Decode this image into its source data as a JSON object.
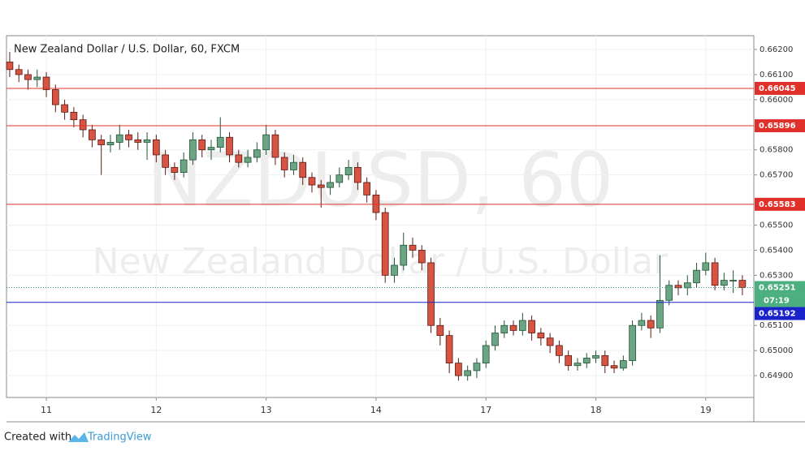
{
  "chart_data": {
    "type": "candlestick",
    "title": "New Zealand Dollar / U.S. Dollar, 60, FXCM",
    "watermark": [
      "NZDUSD, 60",
      "New Zealand Dollar / U.S. Dollar"
    ],
    "up_color": "#6ba583",
    "down_color": "#d75442",
    "x": [
      -8,
      -6,
      -4,
      -2,
      0,
      2,
      4,
      6,
      8,
      10,
      12,
      14,
      16,
      18,
      20,
      22,
      24,
      26,
      28,
      30,
      32,
      34,
      36,
      38,
      40,
      42,
      44,
      46,
      48,
      50,
      52,
      54,
      56,
      58,
      60,
      62,
      64,
      66,
      68,
      70,
      72,
      74,
      76,
      78,
      80,
      82,
      84,
      86,
      88,
      90,
      92,
      94,
      96,
      98,
      100,
      102,
      104,
      106,
      108,
      110,
      112,
      114,
      116,
      118,
      120,
      122,
      124,
      126,
      128,
      130,
      132,
      134,
      136,
      138,
      140,
      142,
      144,
      146,
      148,
      150,
      152
    ],
    "open": [
      0.6615,
      0.6612,
      0.661,
      0.6608,
      0.6609,
      0.6604,
      0.6598,
      0.6595,
      0.6592,
      0.6588,
      0.6584,
      0.6582,
      0.6583,
      0.6586,
      0.6584,
      0.6583,
      0.6584,
      0.6578,
      0.6573,
      0.6571,
      0.6576,
      0.6584,
      0.658,
      0.6581,
      0.6585,
      0.6578,
      0.6575,
      0.6577,
      0.658,
      0.6586,
      0.6577,
      0.6572,
      0.6575,
      0.6569,
      0.6566,
      0.6565,
      0.6567,
      0.657,
      0.6573,
      0.6567,
      0.6562,
      0.6555,
      0.653,
      0.6534,
      0.6542,
      0.654,
      0.6535,
      0.651,
      0.6506,
      0.6495,
      0.649,
      0.6492,
      0.6495,
      0.6502,
      0.6507,
      0.651,
      0.6508,
      0.6512,
      0.6507,
      0.6505,
      0.6502,
      0.6498,
      0.6494,
      0.6495,
      0.6497,
      0.6498,
      0.6494,
      0.6493,
      0.6496,
      0.651,
      0.6512,
      0.6509,
      0.652,
      0.6526,
      0.6525,
      0.6527,
      0.6532,
      0.6535,
      0.6526,
      0.6528,
      0.6528
    ],
    "high": [
      0.6619,
      0.6614,
      0.6612,
      0.6612,
      0.6611,
      0.6606,
      0.66,
      0.6597,
      0.6594,
      0.659,
      0.6586,
      0.6586,
      0.659,
      0.6588,
      0.6587,
      0.6587,
      0.6586,
      0.658,
      0.6575,
      0.6579,
      0.6587,
      0.6586,
      0.6584,
      0.6593,
      0.6587,
      0.658,
      0.658,
      0.6583,
      0.659,
      0.6588,
      0.6579,
      0.6578,
      0.6577,
      0.6571,
      0.6568,
      0.657,
      0.6573,
      0.6576,
      0.6575,
      0.6569,
      0.6564,
      0.6557,
      0.6537,
      0.6547,
      0.6545,
      0.6542,
      0.6537,
      0.6513,
      0.6508,
      0.6497,
      0.6494,
      0.6497,
      0.6504,
      0.651,
      0.6512,
      0.6512,
      0.6515,
      0.6514,
      0.6509,
      0.6507,
      0.6504,
      0.65,
      0.6497,
      0.6499,
      0.65,
      0.65,
      0.6496,
      0.6498,
      0.6512,
      0.6515,
      0.6514,
      0.6538,
      0.6528,
      0.6528,
      0.653,
      0.6535,
      0.6539,
      0.6537,
      0.6531,
      0.6532,
      0.653
    ],
    "low": [
      0.6609,
      0.6607,
      0.6604,
      0.6605,
      0.6601,
      0.6595,
      0.6592,
      0.6589,
      0.6585,
      0.6581,
      0.657,
      0.6579,
      0.658,
      0.6581,
      0.658,
      0.6576,
      0.6575,
      0.657,
      0.6568,
      0.6569,
      0.6574,
      0.6577,
      0.6576,
      0.6579,
      0.6575,
      0.6573,
      0.6573,
      0.6575,
      0.6578,
      0.6574,
      0.6569,
      0.657,
      0.6566,
      0.6563,
      0.6557,
      0.6562,
      0.6565,
      0.6568,
      0.6564,
      0.6559,
      0.6552,
      0.6527,
      0.6527,
      0.6532,
      0.6537,
      0.6532,
      0.6507,
      0.6502,
      0.6491,
      0.6488,
      0.6488,
      0.6489,
      0.6493,
      0.65,
      0.6505,
      0.6506,
      0.6506,
      0.6504,
      0.6502,
      0.6499,
      0.6495,
      0.6492,
      0.6492,
      0.6493,
      0.6495,
      0.6491,
      0.6491,
      0.6492,
      0.6494,
      0.6508,
      0.6505,
      0.6507,
      0.6518,
      0.6522,
      0.6522,
      0.6525,
      0.653,
      0.6524,
      0.6524,
      0.6523,
      0.6522
    ],
    "close": [
      0.6612,
      0.661,
      0.6608,
      0.6609,
      0.6604,
      0.6598,
      0.6595,
      0.6592,
      0.6588,
      0.6584,
      0.6582,
      0.6583,
      0.6586,
      0.6584,
      0.6583,
      0.6584,
      0.6578,
      0.6573,
      0.6571,
      0.6576,
      0.6584,
      0.658,
      0.6581,
      0.6585,
      0.6578,
      0.6575,
      0.6577,
      0.658,
      0.6586,
      0.6577,
      0.6572,
      0.6575,
      0.6569,
      0.6566,
      0.6565,
      0.6567,
      0.657,
      0.6573,
      0.6567,
      0.6562,
      0.6555,
      0.653,
      0.6534,
      0.6542,
      0.654,
      0.6535,
      0.651,
      0.6506,
      0.6495,
      0.649,
      0.6492,
      0.6495,
      0.6502,
      0.6507,
      0.651,
      0.6508,
      0.6512,
      0.6507,
      0.6505,
      0.6502,
      0.6498,
      0.6494,
      0.6495,
      0.6497,
      0.6498,
      0.6494,
      0.6493,
      0.6496,
      0.651,
      0.6512,
      0.6509,
      0.652,
      0.6526,
      0.6525,
      0.6527,
      0.6532,
      0.6535,
      0.6526,
      0.6528,
      0.6528,
      0.65251
    ],
    "xlim": [
      -8.7,
      154.5
    ],
    "xticks": [
      {
        "value": 0,
        "label": "11"
      },
      {
        "value": 24,
        "label": "12"
      },
      {
        "value": 48,
        "label": "13"
      },
      {
        "value": 72,
        "label": "14"
      },
      {
        "value": 96,
        "label": "17"
      },
      {
        "value": 120,
        "label": "18"
      },
      {
        "value": 144,
        "label": "19"
      }
    ],
    "ylim": [
      0.64813,
      0.66255
    ],
    "yticks": [
      {
        "value": 0.662,
        "label": "0.66200"
      },
      {
        "value": 0.661,
        "label": "0.66100"
      },
      {
        "value": 0.66,
        "label": "0.66000"
      },
      {
        "value": 0.658,
        "label": "0.65800"
      },
      {
        "value": 0.657,
        "label": "0.65700"
      },
      {
        "value": 0.655,
        "label": "0.65500"
      },
      {
        "value": 0.654,
        "label": "0.65400"
      },
      {
        "value": 0.653,
        "label": "0.65300"
      },
      {
        "value": 0.651,
        "label": "0.65100"
      },
      {
        "value": 0.65,
        "label": "0.65000"
      },
      {
        "value": 0.649,
        "label": "0.64900"
      }
    ],
    "grid": true,
    "levels": [
      {
        "value": 0.66045,
        "color": "#e0302a"
      },
      {
        "value": 0.65896,
        "color": "#e0302a"
      },
      {
        "value": 0.65583,
        "color": "#e0302a"
      },
      {
        "value": 0.65192,
        "color": "#1a23c9"
      }
    ],
    "last_price": {
      "value": 0.65251,
      "color": "#4caf7f"
    },
    "countdown": "07:19"
  },
  "footer": {
    "text": "Created with",
    "brand": "TradingView"
  }
}
